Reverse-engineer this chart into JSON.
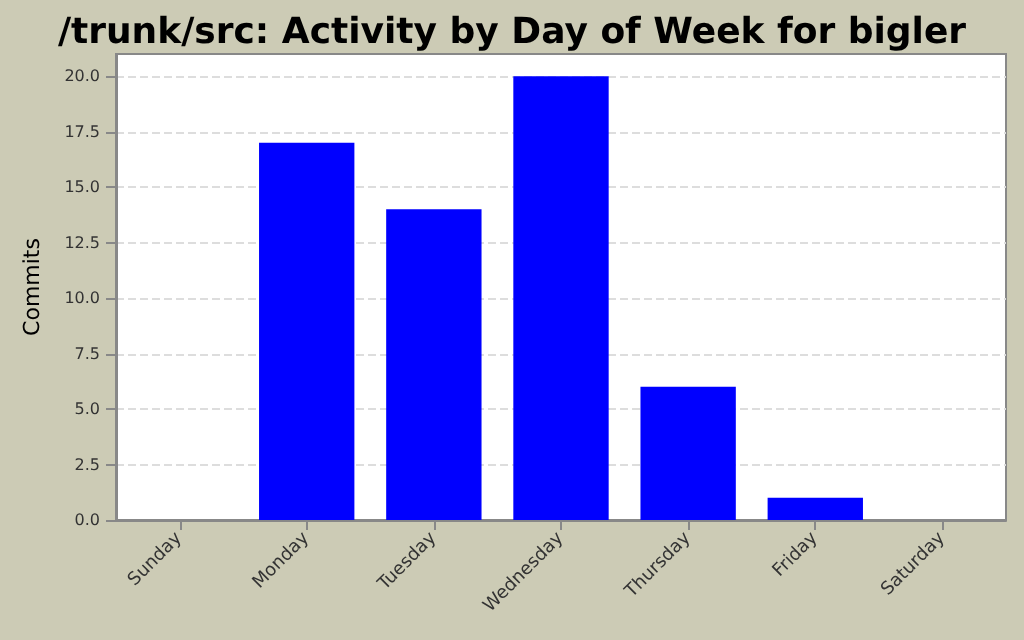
{
  "chart_data": {
    "type": "bar",
    "title": "/trunk/src: Activity by Day of Week for bigler",
    "ylabel": "Commits",
    "categories": [
      "Sunday",
      "Monday",
      "Tuesday",
      "Wednesday",
      "Thursday",
      "Friday",
      "Saturday"
    ],
    "values": [
      0,
      17,
      14,
      20,
      6,
      1,
      0
    ],
    "color": "#0000ff",
    "ylim": [
      0,
      21
    ],
    "yticks": [
      {
        "value": 0,
        "label": "0.0"
      },
      {
        "value": 2.5,
        "label": "2.5"
      },
      {
        "value": 5,
        "label": "5.0"
      },
      {
        "value": 7.5,
        "label": "7.5"
      },
      {
        "value": 10,
        "label": "10.0"
      },
      {
        "value": 12.5,
        "label": "12.5"
      },
      {
        "value": 15,
        "label": "15.0"
      },
      {
        "value": 17.5,
        "label": "17.5"
      },
      {
        "value": 20,
        "label": "20.0"
      }
    ],
    "grid": "y"
  }
}
